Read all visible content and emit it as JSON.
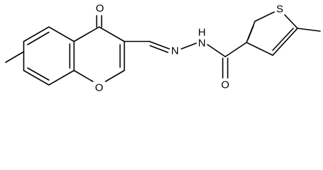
{
  "atoms": [
    {
      "label": "O"
    },
    {
      "label": "O"
    },
    {
      "label": "N"
    },
    {
      "label": "H"
    },
    {
      "label": "N"
    },
    {
      "label": "O"
    },
    {
      "label": "S"
    }
  ]
}
